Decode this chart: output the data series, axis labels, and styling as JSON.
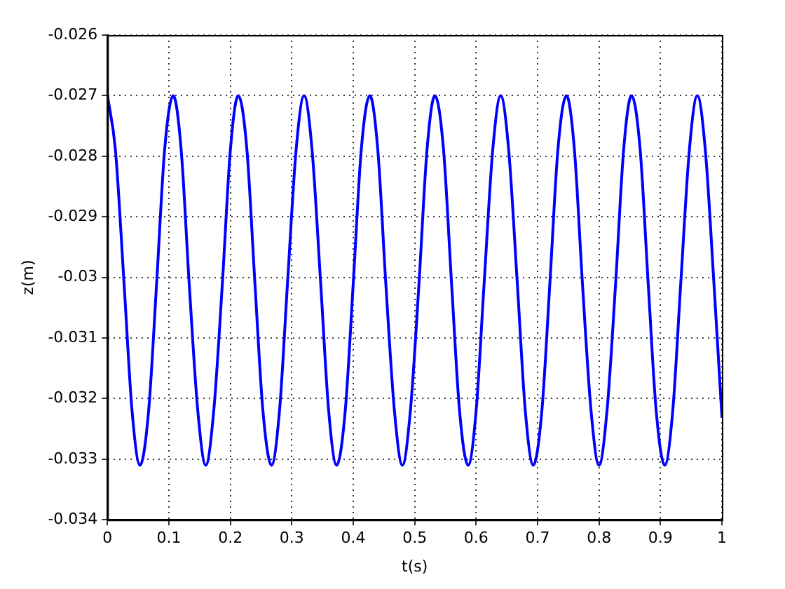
{
  "chart_data": {
    "type": "line",
    "xlabel": "t(s)",
    "ylabel": "z(m)",
    "x": [
      0,
      0.013,
      0.027,
      0.04,
      0.053,
      0.067,
      0.08,
      0.093,
      0.107,
      0.12,
      0.133,
      0.147,
      0.16,
      0.173,
      0.187,
      0.2,
      0.213,
      0.227,
      0.24,
      0.253,
      0.267,
      0.28,
      0.293,
      0.307,
      0.32,
      0.333,
      0.347,
      0.36,
      0.373,
      0.387,
      0.4,
      0.413,
      0.427,
      0.44,
      0.453,
      0.467,
      0.48,
      0.493,
      0.507,
      0.52,
      0.533,
      0.547,
      0.56,
      0.573,
      0.587,
      0.6,
      0.613,
      0.627,
      0.64,
      0.653,
      0.667,
      0.68,
      0.693,
      0.707,
      0.72,
      0.733,
      0.747,
      0.76,
      0.773,
      0.787,
      0.8,
      0.813,
      0.827,
      0.84,
      0.853,
      0.867,
      0.88,
      0.893,
      0.907,
      0.92,
      0.933,
      0.947,
      0.96,
      0.973,
      0.987,
      1
    ],
    "series": [
      {
        "color": "#0000ff",
        "values": [
          -0.027,
          -0.0279,
          -0.0301,
          -0.0322,
          -0.0331,
          -0.0322,
          -0.0301,
          -0.0279,
          -0.027,
          -0.0279,
          -0.0301,
          -0.0322,
          -0.0331,
          -0.0322,
          -0.0301,
          -0.0279,
          -0.027,
          -0.0279,
          -0.0301,
          -0.0322,
          -0.0331,
          -0.0322,
          -0.0301,
          -0.0279,
          -0.027,
          -0.0279,
          -0.0301,
          -0.0322,
          -0.0331,
          -0.0322,
          -0.0301,
          -0.0279,
          -0.027,
          -0.0279,
          -0.0301,
          -0.0322,
          -0.0331,
          -0.0322,
          -0.0301,
          -0.0279,
          -0.027,
          -0.0279,
          -0.0301,
          -0.0322,
          -0.0331,
          -0.0322,
          -0.0301,
          -0.0279,
          -0.027,
          -0.0279,
          -0.0301,
          -0.0322,
          -0.0331,
          -0.0322,
          -0.0301,
          -0.0279,
          -0.027,
          -0.0279,
          -0.0301,
          -0.0322,
          -0.0331,
          -0.0322,
          -0.0301,
          -0.0279,
          -0.027,
          -0.0279,
          -0.0301,
          -0.0322,
          -0.0331,
          -0.0322,
          -0.0301,
          -0.0279,
          -0.027,
          -0.0279,
          -0.0301,
          -0.0323
        ]
      }
    ],
    "xlim": [
      0,
      1
    ],
    "xticks": [
      0,
      0.1,
      0.2,
      0.3,
      0.4,
      0.5,
      0.6,
      0.7,
      0.8,
      0.9,
      1
    ],
    "ylim": [
      -0.034,
      -0.026
    ],
    "yticks": [
      -0.034,
      -0.033,
      -0.032,
      -0.031,
      -0.03,
      -0.029,
      -0.028,
      -0.027,
      -0.026
    ],
    "grid": true,
    "legend": false,
    "marker": "none",
    "line_style": "solid"
  }
}
